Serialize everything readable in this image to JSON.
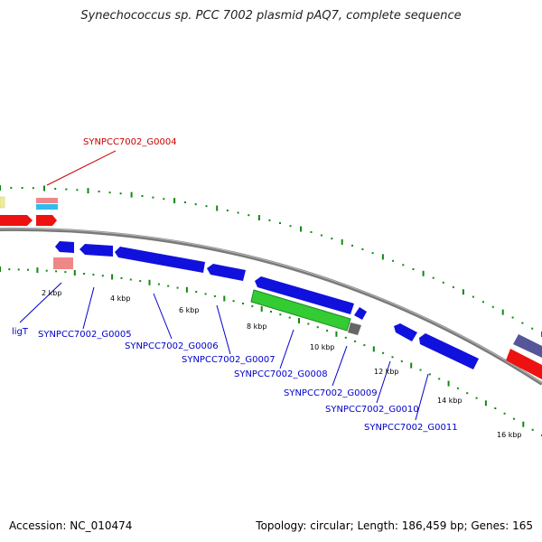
{
  "title": "Synechococcus sp. PCC 7002 plasmid pAQ7, complete sequence",
  "footer": {
    "accession": "Accession: NC_010474",
    "topology": "Topology: circular; Length: 186,459 bp; Genes: 165"
  },
  "colors": {
    "forward_strand": "#ff0000",
    "reverse_strand": "#0000ff",
    "backbone": "#808080",
    "ticks": "#008000",
    "label_forward": "#cc0000",
    "label_reverse": "#0000cc",
    "highlight_green": "#33cc33",
    "pink": "#ee8888",
    "cyan": "#33bbee",
    "yellow": "#eeee99",
    "purple": "#555599",
    "dark_gray": "#666666"
  },
  "tick_labels": [
    "2 kbp",
    "4 kbp",
    "6 kbp",
    "8 kbp",
    "10 kbp",
    "12 kbp",
    "14 kbp",
    "16 kbp"
  ],
  "gene_labels": [
    {
      "id": "g0004",
      "text": "SYNPCC7002_G0004",
      "strand": "forward"
    },
    {
      "id": "ligT",
      "text": "ligT",
      "strand": "reverse"
    },
    {
      "id": "g0005",
      "text": "SYNPCC7002_G0005",
      "strand": "reverse"
    },
    {
      "id": "g0006",
      "text": "SYNPCC7002_G0006",
      "strand": "reverse"
    },
    {
      "id": "g0007",
      "text": "SYNPCC7002_G0007",
      "strand": "reverse"
    },
    {
      "id": "g0008",
      "text": "SYNPCC7002_G0008",
      "strand": "reverse"
    },
    {
      "id": "g0009",
      "text": "SYNPCC7002_G0009",
      "strand": "reverse"
    },
    {
      "id": "g0010",
      "text": "SYNPCC7002_G0010",
      "strand": "reverse"
    },
    {
      "id": "g0011",
      "text": "SYNPCC7002_G0011",
      "strand": "reverse"
    }
  ]
}
